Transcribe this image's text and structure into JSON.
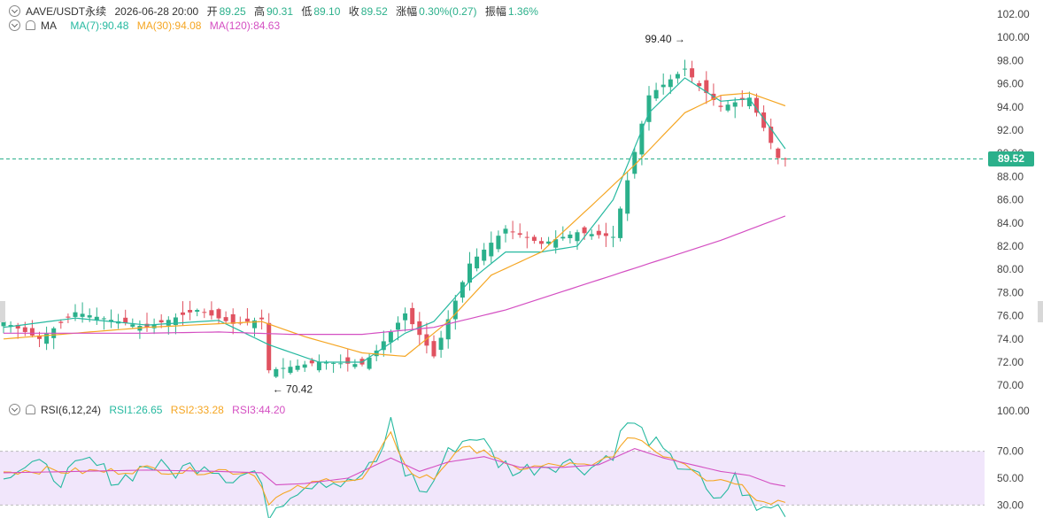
{
  "header": {
    "pair": "AAVE/USDT永续",
    "datetime": "2026-06-28 20:00",
    "open_label": "开",
    "open": "89.25",
    "high_label": "高",
    "high": "90.31",
    "low_label": "低",
    "low": "89.10",
    "close_label": "收",
    "close": "89.52",
    "change_label": "涨幅",
    "change": "0.30%(0.27)",
    "amp_label": "振幅",
    "amp": "1.36%"
  },
  "ma_header": {
    "name": "MA",
    "ma7": "MA(7):90.48",
    "ma30": "MA(30):94.08",
    "ma120": "MA(120):84.63"
  },
  "rsi_header": {
    "name": "RSI(6,12,24)",
    "rsi1": "RSI1:26.65",
    "rsi2": "RSI2:33.28",
    "rsi3": "RSI3:44.20"
  },
  "last_price": "89.52",
  "colors": {
    "up": "#2bb08b",
    "down": "#e05260",
    "ma7": "#26b9a0",
    "ma30": "#f5a623",
    "ma120": "#d44fc2",
    "rsi1": "#26b9a0",
    "rsi2": "#f5a623",
    "rsi3": "#d44fc2",
    "rsi_band": "#f1e6fb"
  },
  "chart_data": [
    {
      "type": "candlestick",
      "title": "AAVE/USDT永续",
      "ylim": [
        69,
        102.5
      ],
      "y_ticks": [
        "102.00",
        "100.00",
        "98.00",
        "96.00",
        "94.00",
        "92.00",
        "90.00",
        "88.00",
        "86.00",
        "84.00",
        "82.00",
        "80.00",
        "78.00",
        "76.00",
        "74.00",
        "72.00",
        "70.00"
      ],
      "annotations": [
        {
          "text": "99.40 →",
          "value": 99.4,
          "bar": 95
        },
        {
          "text": "← 70.42",
          "value": 70.42,
          "bar": 37
        }
      ],
      "ohlc_keypoints": [
        [
          0,
          75.5
        ],
        [
          5,
          74.0
        ],
        [
          10,
          76.3
        ],
        [
          20,
          75.0
        ],
        [
          27,
          76.5
        ],
        [
          32,
          75.3
        ],
        [
          36,
          75.7
        ],
        [
          37,
          71.3
        ],
        [
          44,
          72.0
        ],
        [
          50,
          71.8
        ],
        [
          52,
          73.0
        ],
        [
          56,
          76.2
        ],
        [
          60,
          72.5
        ],
        [
          65,
          80.5
        ],
        [
          70,
          83.5
        ],
        [
          75,
          82.2
        ],
        [
          80,
          83.2
        ],
        [
          85,
          82.8
        ],
        [
          90,
          95.0
        ],
        [
          95,
          97.3
        ],
        [
          97,
          95.8
        ],
        [
          100,
          94.0
        ],
        [
          104,
          94.8
        ],
        [
          108,
          89.6
        ],
        [
          109,
          89.52
        ]
      ],
      "series": [
        {
          "name": "MA(7)",
          "keypoints": [
            [
              0,
              75.0
            ],
            [
              10,
              75.8
            ],
            [
              20,
              75.2
            ],
            [
              30,
              75.6
            ],
            [
              37,
              73.5
            ],
            [
              44,
              72.0
            ],
            [
              50,
              72.0
            ],
            [
              56,
              74.5
            ],
            [
              60,
              75.5
            ],
            [
              65,
              79.0
            ],
            [
              70,
              81.5
            ],
            [
              75,
              81.5
            ],
            [
              80,
              82.0
            ],
            [
              85,
              86.0
            ],
            [
              90,
              93.5
            ],
            [
              95,
              96.5
            ],
            [
              100,
              94.5
            ],
            [
              104,
              94.7
            ],
            [
              109,
              90.4
            ]
          ]
        },
        {
          "name": "MA(30)",
          "keypoints": [
            [
              0,
              74.0
            ],
            [
              20,
              75.0
            ],
            [
              36,
              75.5
            ],
            [
              42,
              74.2
            ],
            [
              50,
              72.8
            ],
            [
              56,
              72.5
            ],
            [
              62,
              75.5
            ],
            [
              68,
              79.5
            ],
            [
              75,
              81.5
            ],
            [
              82,
              85.5
            ],
            [
              88,
              89.0
            ],
            [
              95,
              93.5
            ],
            [
              100,
              95.0
            ],
            [
              104,
              95.2
            ],
            [
              109,
              94.1
            ]
          ]
        },
        {
          "name": "MA(120)",
          "keypoints": [
            [
              0,
              74.5
            ],
            [
              20,
              74.5
            ],
            [
              30,
              74.6
            ],
            [
              40,
              74.4
            ],
            [
              50,
              74.4
            ],
            [
              60,
              75.0
            ],
            [
              70,
              76.5
            ],
            [
              80,
              78.5
            ],
            [
              90,
              80.5
            ],
            [
              100,
              82.5
            ],
            [
              109,
              84.6
            ]
          ]
        }
      ]
    },
    {
      "type": "line",
      "title": "RSI(6,12,24)",
      "ylim": [
        25,
        102
      ],
      "y_ticks": [
        "100.00",
        "70.00",
        "50.00",
        "30.00"
      ],
      "band": [
        30,
        70
      ],
      "series": [
        {
          "name": "RSI1",
          "keypoints": [
            [
              0,
              55
            ],
            [
              4,
              60
            ],
            [
              8,
              50
            ],
            [
              12,
              62
            ],
            [
              16,
              48
            ],
            [
              20,
              60
            ],
            [
              24,
              55
            ],
            [
              28,
              62
            ],
            [
              32,
              50
            ],
            [
              35,
              55
            ],
            [
              37,
              25
            ],
            [
              40,
              40
            ],
            [
              44,
              50
            ],
            [
              48,
              45
            ],
            [
              52,
              60
            ],
            [
              54,
              92
            ],
            [
              56,
              55
            ],
            [
              59,
              38
            ],
            [
              61,
              60
            ],
            [
              63,
              75
            ],
            [
              66,
              82
            ],
            [
              69,
              62
            ],
            [
              72,
              55
            ],
            [
              75,
              60
            ],
            [
              78,
              62
            ],
            [
              82,
              58
            ],
            [
              85,
              70
            ],
            [
              87,
              92
            ],
            [
              90,
              80
            ],
            [
              93,
              62
            ],
            [
              96,
              58
            ],
            [
              99,
              30
            ],
            [
              102,
              50
            ],
            [
              105,
              25
            ],
            [
              107,
              30
            ],
            [
              109,
              27
            ]
          ]
        },
        {
          "name": "RSI2",
          "keypoints": [
            [
              0,
              55
            ],
            [
              5,
              56
            ],
            [
              10,
              55
            ],
            [
              15,
              55
            ],
            [
              20,
              57
            ],
            [
              25,
              55
            ],
            [
              30,
              56
            ],
            [
              35,
              54
            ],
            [
              37,
              33
            ],
            [
              41,
              42
            ],
            [
              46,
              50
            ],
            [
              50,
              48
            ],
            [
              54,
              82
            ],
            [
              57,
              52
            ],
            [
              60,
              50
            ],
            [
              63,
              70
            ],
            [
              67,
              72
            ],
            [
              70,
              58
            ],
            [
              74,
              58
            ],
            [
              78,
              60
            ],
            [
              82,
              58
            ],
            [
              86,
              72
            ],
            [
              88,
              82
            ],
            [
              91,
              70
            ],
            [
              95,
              62
            ],
            [
              98,
              50
            ],
            [
              102,
              48
            ],
            [
              105,
              36
            ],
            [
              107,
              33
            ],
            [
              109,
              33
            ]
          ]
        },
        {
          "name": "RSI3",
          "keypoints": [
            [
              0,
              54
            ],
            [
              10,
              55
            ],
            [
              20,
              56
            ],
            [
              30,
              55
            ],
            [
              36,
              54
            ],
            [
              38,
              45
            ],
            [
              42,
              46
            ],
            [
              48,
              50
            ],
            [
              54,
              65
            ],
            [
              58,
              55
            ],
            [
              62,
              62
            ],
            [
              67,
              66
            ],
            [
              72,
              58
            ],
            [
              78,
              58
            ],
            [
              83,
              60
            ],
            [
              88,
              72
            ],
            [
              92,
              65
            ],
            [
              96,
              60
            ],
            [
              100,
              55
            ],
            [
              104,
              52
            ],
            [
              107,
              46
            ],
            [
              109,
              44
            ]
          ]
        }
      ]
    }
  ]
}
